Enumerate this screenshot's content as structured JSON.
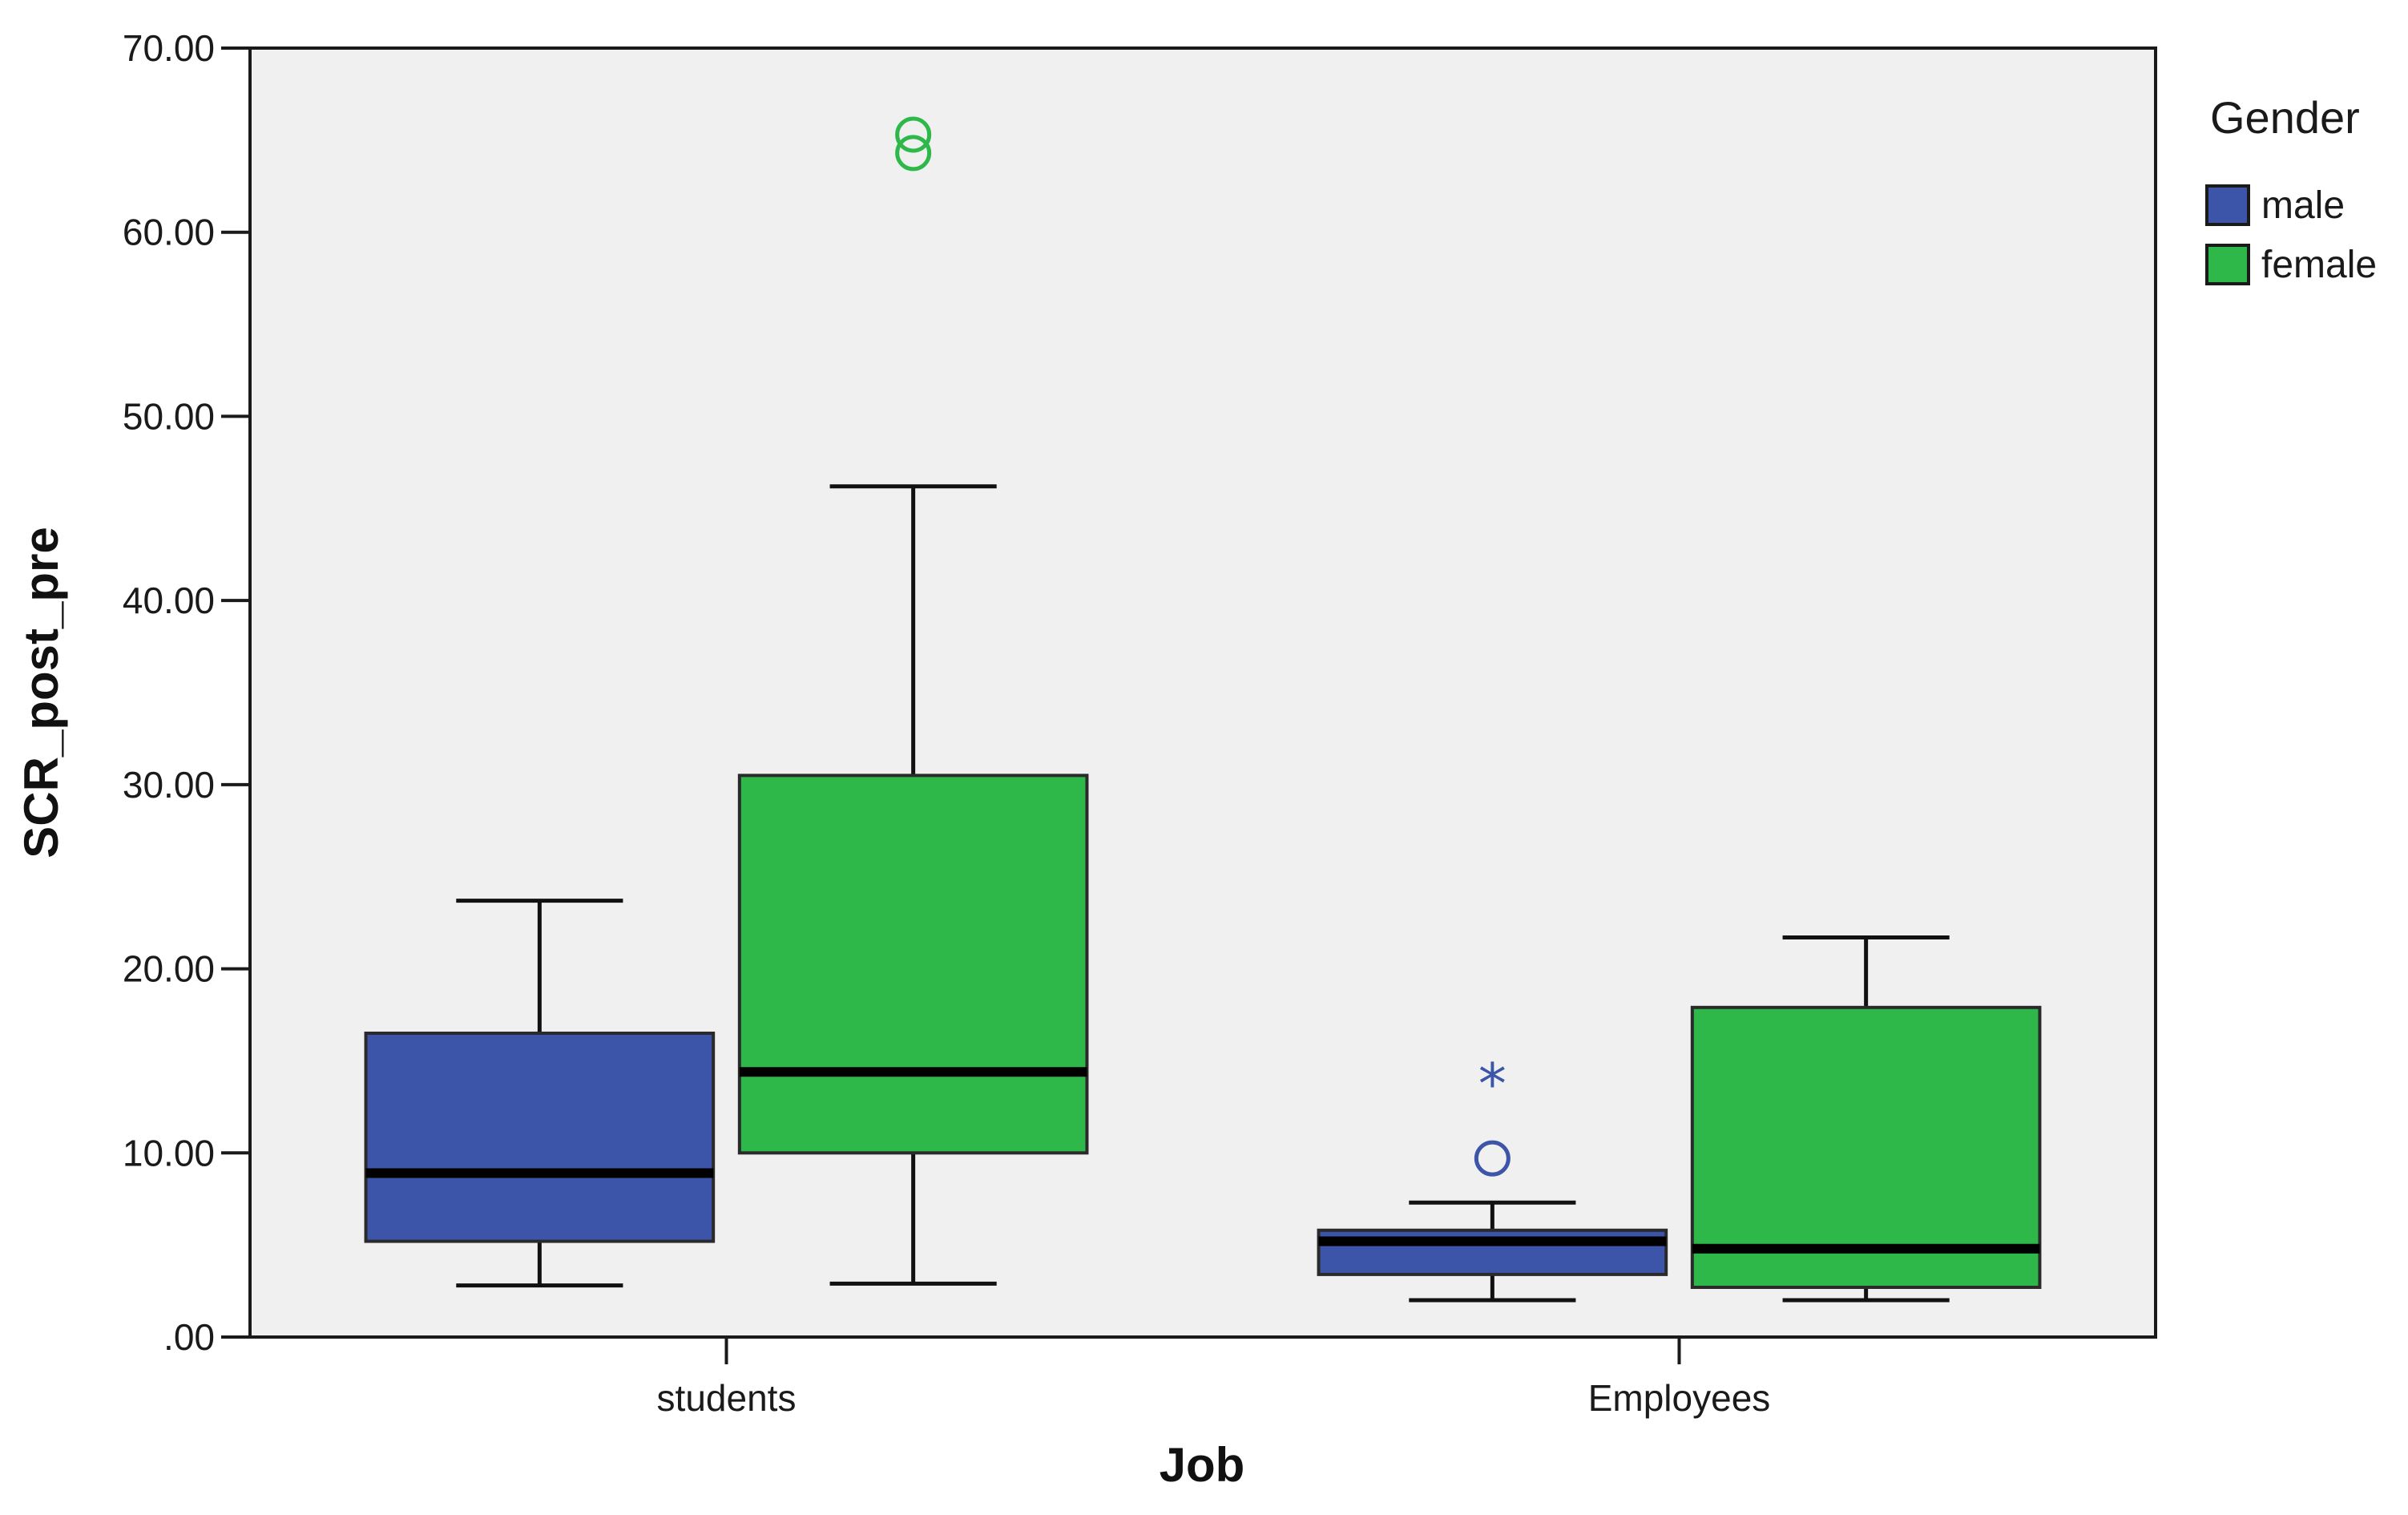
{
  "chart_data": {
    "type": "boxplot",
    "title": "",
    "xlabel": "Job",
    "ylabel": "SCR_post_pre",
    "ylim": [
      0,
      70
    ],
    "y_ticks": [
      0,
      10,
      20,
      30,
      40,
      50,
      60,
      70
    ],
    "y_tick_labels": [
      ".00",
      "10.00",
      "20.00",
      "30.00",
      "40.00",
      "50.00",
      "60.00",
      "70.00"
    ],
    "categories": [
      "students",
      "Employees"
    ],
    "grid": false,
    "legend": {
      "title": "Gender",
      "position": "right",
      "entries": [
        "male",
        "female"
      ]
    },
    "series": [
      {
        "name": "male",
        "color": "#3d55a8",
        "boxes": [
          {
            "category": "students",
            "whisker_low": 2.8,
            "q1": 5.2,
            "median": 8.9,
            "q3": 16.5,
            "whisker_high": 23.7,
            "outliers": [],
            "extremes": []
          },
          {
            "category": "Employees",
            "whisker_low": 2.0,
            "q1": 3.4,
            "median": 5.2,
            "q3": 5.8,
            "whisker_high": 7.3,
            "outliers": [
              9.7
            ],
            "extremes": [
              14.0
            ]
          }
        ]
      },
      {
        "name": "female",
        "color": "#2fb84a",
        "boxes": [
          {
            "category": "students",
            "whisker_low": 2.9,
            "q1": 10.0,
            "median": 14.4,
            "q3": 30.5,
            "whisker_high": 46.2,
            "outliers": [
              64.3,
              65.3
            ],
            "extremes": []
          },
          {
            "category": "Employees",
            "whisker_low": 2.0,
            "q1": 2.7,
            "median": 4.8,
            "q3": 17.9,
            "whisker_high": 21.7,
            "outliers": [],
            "extremes": []
          }
        ]
      }
    ],
    "colors": {
      "plot_background": "#f0f0f0",
      "axis": "#1a1a1a",
      "median": "#000000"
    }
  }
}
